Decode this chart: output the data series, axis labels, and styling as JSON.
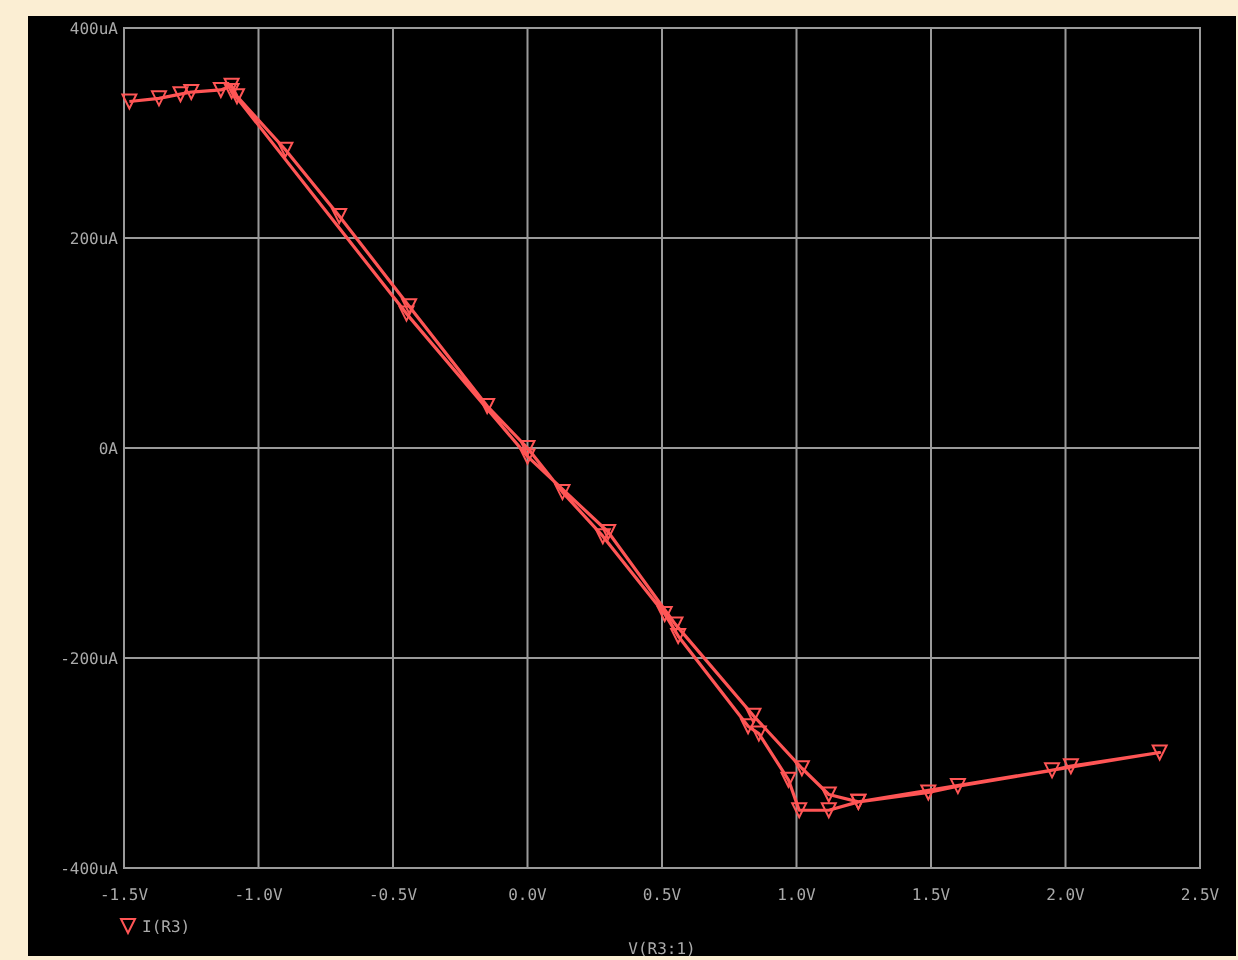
{
  "chart_data": {
    "type": "line",
    "xlabel": "V(R3:1)",
    "xlim": [
      -1.5,
      2.5
    ],
    "ylim": [
      -400,
      400
    ],
    "xticks": [
      {
        "value": -1.5,
        "label": "-1.5V"
      },
      {
        "value": -1,
        "label": "-1.0V"
      },
      {
        "value": -0.5,
        "label": "-0.5V"
      },
      {
        "value": 0,
        "label": "0.0V"
      },
      {
        "value": 0.5,
        "label": "0.5V"
      },
      {
        "value": 1,
        "label": "1.0V"
      },
      {
        "value": 1.5,
        "label": "1.5V"
      },
      {
        "value": 2,
        "label": "2.0V"
      },
      {
        "value": 2.5,
        "label": "2.5V"
      }
    ],
    "yticks": [
      {
        "value": -400,
        "label": "-400uA"
      },
      {
        "value": -200,
        "label": "-200uA"
      },
      {
        "value": 0,
        "label": "0A"
      },
      {
        "value": 200,
        "label": "200uA"
      },
      {
        "value": 400,
        "label": "400uA"
      }
    ],
    "grid": true,
    "legend": "bottom left",
    "marker": "triangle",
    "line_style": "solid",
    "series": [
      {
        "name": "I(R3)",
        "color": "#ff5555",
        "x": [
          -1.48,
          -1.37,
          -1.29,
          -1.25,
          -1.14,
          -1.1,
          -1.08,
          -0.9,
          -0.7,
          -0.44,
          -0.15,
          0,
          0.13,
          0.28,
          0.51,
          0.56,
          0.82,
          0.86,
          0.97,
          1.01,
          1.12,
          1.23,
          1.49,
          1.6,
          1.95,
          2.02,
          2.35,
          1.23,
          1.12,
          1.02,
          0.84,
          0.55,
          0.3,
          0,
          -0.45,
          -1.1
        ],
        "values": [
          330,
          333,
          337,
          339,
          341,
          345,
          335,
          284,
          221,
          135,
          40,
          0,
          -42,
          -84,
          -158,
          -179,
          -265,
          -272,
          -316,
          -345,
          -345,
          -337,
          -328,
          -322,
          -307,
          -303,
          -290,
          -337,
          -330,
          -305,
          -255,
          -168,
          -80,
          -8,
          128,
          340
        ]
      }
    ]
  }
}
